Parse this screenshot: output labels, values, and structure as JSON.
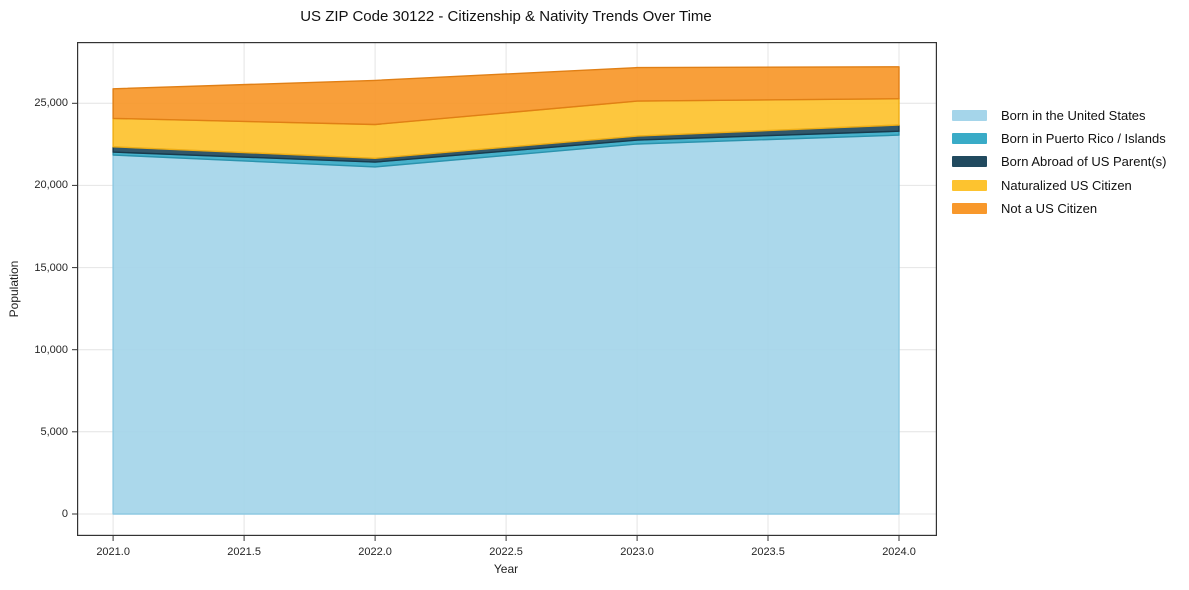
{
  "title": "US ZIP Code 30122 - Citizenship & Nativity Trends Over Time",
  "chart_data": {
    "type": "area",
    "stacked": true,
    "title": "US ZIP Code 30122 - Citizenship & Nativity Trends Over Time",
    "xlabel": "Year",
    "ylabel": "Population",
    "x": [
      2021,
      2022,
      2023,
      2024
    ],
    "series": [
      {
        "name": "Born in the United States",
        "color": "#a5d5ea",
        "edge": "#8ec9e2",
        "values": [
          21850,
          21130,
          22520,
          23060
        ]
      },
      {
        "name": "Born in Puerto Rico / Islands",
        "color": "#39abc7",
        "edge": "#2b93ad",
        "values": [
          180,
          290,
          240,
          240
        ]
      },
      {
        "name": "Born Abroad of US Parent(s)",
        "color": "#214a5f",
        "edge": "#183a4c",
        "values": [
          320,
          230,
          240,
          380
        ]
      },
      {
        "name": "Naturalized US Citizen",
        "color": "#fdc32f",
        "edge": "#eead15",
        "values": [
          1730,
          2060,
          2130,
          1600
        ]
      },
      {
        "name": "Not a US Citizen",
        "color": "#f8982b",
        "edge": "#e07f15",
        "values": [
          1800,
          2680,
          2040,
          1940
        ]
      }
    ],
    "totals": [
      25880,
      26390,
      27170,
      27220
    ],
    "xticks": [
      2021.0,
      2021.5,
      2022.0,
      2022.5,
      2023.0,
      2023.5,
      2024.0
    ],
    "xtick_labels": [
      "2021.0",
      "2021.5",
      "2022.0",
      "2022.5",
      "2023.0",
      "2023.5",
      "2024.0"
    ],
    "yticks": [
      0,
      5000,
      10000,
      15000,
      20000,
      25000
    ],
    "ytick_labels": [
      "0",
      "5,000",
      "10,000",
      "15,000",
      "20,000",
      "25,000"
    ],
    "xlim": [
      2020.862,
      2024.145
    ],
    "ylim": [
      -1340,
      28730
    ],
    "grid": true,
    "grid_color": "#e4e4e4",
    "spine_color": "#333333",
    "tick_color": "#333333",
    "background": "#ffffff",
    "fill_opacity": 0.93,
    "legend_position": "right"
  }
}
